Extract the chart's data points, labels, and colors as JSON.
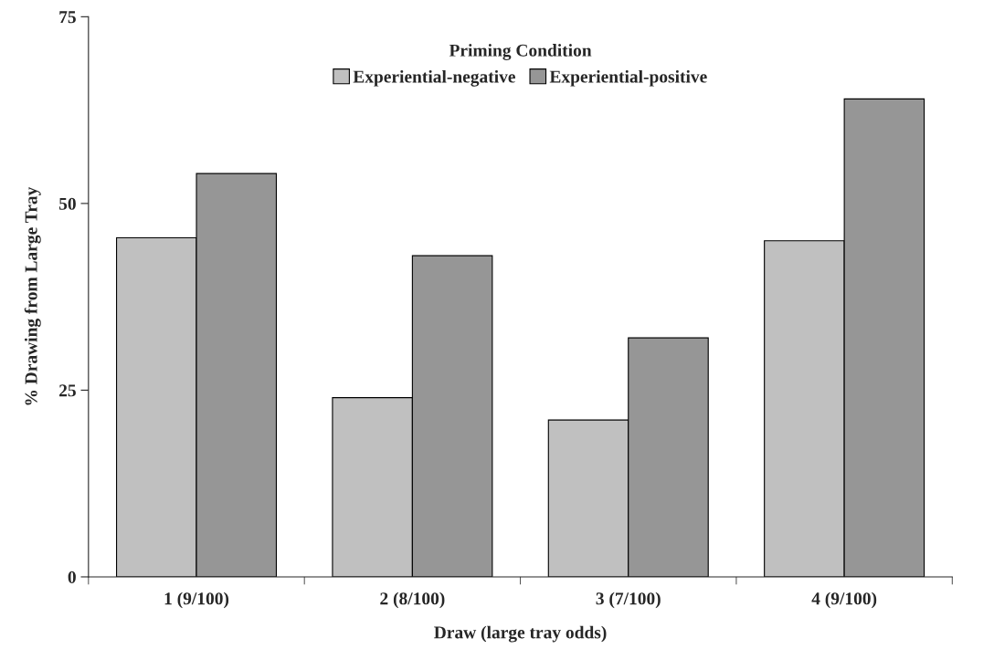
{
  "chart_data": {
    "type": "bar",
    "xlabel": "Draw (large tray odds)",
    "ylabel": "% Drawing from Large Tray",
    "legend_title": "Priming Condition",
    "categories": [
      "1 (9/100)",
      "2 (8/100)",
      "3 (7/100)",
      "4 (9/100)"
    ],
    "series": [
      {
        "name": "Experiential-negative",
        "color": "#c0c0c0",
        "values": [
          45.4,
          24,
          21,
          45
        ]
      },
      {
        "name": "Experiential-positive",
        "color": "#969696",
        "values": [
          54,
          43,
          32,
          64
        ]
      }
    ],
    "ylim": [
      0,
      75
    ],
    "yticks": [
      0,
      25,
      50,
      75
    ],
    "grid": false,
    "legend": "top"
  }
}
